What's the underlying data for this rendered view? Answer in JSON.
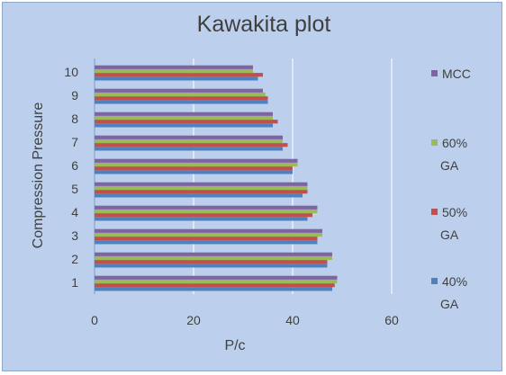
{
  "chart_data": {
    "type": "bar",
    "orientation": "horizontal",
    "title": "Kawakita plot",
    "xlabel": "P/c",
    "ylabel": "Compression Pressure",
    "categories": [
      "1",
      "2",
      "3",
      "4",
      "5",
      "6",
      "7",
      "8",
      "9",
      "10"
    ],
    "xlim": [
      0,
      60
    ],
    "xticks": [
      0,
      20,
      40,
      60
    ],
    "grid": "vertical major gridlines",
    "legend_position": "right",
    "series": [
      {
        "name": "40% GA",
        "color": "#4f81bd",
        "values": [
          48,
          47,
          45,
          43,
          42,
          40,
          38,
          36,
          35,
          33
        ]
      },
      {
        "name": "50% GA",
        "color": "#c0504d",
        "values": [
          48.5,
          47,
          45,
          44,
          43,
          40,
          39,
          37,
          35,
          34
        ]
      },
      {
        "name": "60% GA",
        "color": "#9bbb59",
        "values": [
          49,
          48,
          46,
          45,
          43,
          41,
          38,
          36,
          34.5,
          32
        ]
      },
      {
        "name": "MCC",
        "color": "#8064a2",
        "values": [
          49,
          48,
          46,
          45,
          43,
          41,
          38,
          36,
          34,
          32
        ]
      }
    ]
  }
}
